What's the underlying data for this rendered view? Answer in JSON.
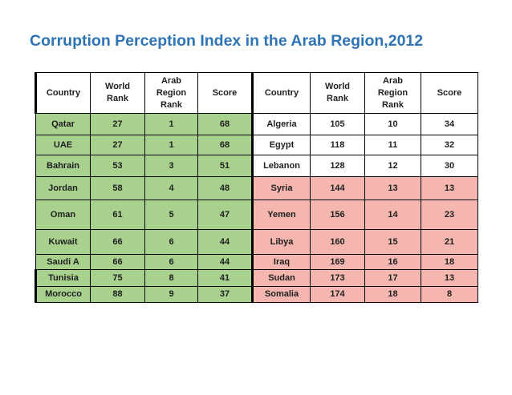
{
  "title": "Corruption Perception Index in the Arab Region,2012",
  "headers": [
    "Country",
    "World Rank",
    "Arab Region Rank",
    "Score",
    "Country",
    "World Rank",
    "Arab Region Rank",
    "Score"
  ],
  "header_lines": [
    [
      "Country"
    ],
    [
      "World",
      "Rank"
    ],
    [
      "Arab",
      "Region",
      "Rank"
    ],
    [
      "Score"
    ],
    [
      "Country"
    ],
    [
      "World",
      "Rank"
    ],
    [
      "Arab",
      "Region",
      "Rank"
    ],
    [
      "Score"
    ]
  ],
  "rows": [
    {
      "left": [
        "Qatar",
        "27",
        "1",
        "68"
      ],
      "right": [
        "Algeria",
        "105",
        "10",
        "34"
      ]
    },
    {
      "left": [
        "UAE",
        "27",
        "1",
        "68"
      ],
      "right": [
        "Egypt",
        "118",
        "11",
        "32"
      ]
    },
    {
      "left": [
        "Bahrain",
        "53",
        "3",
        "51"
      ],
      "right": [
        "Lebanon",
        "128",
        "12",
        "30"
      ]
    },
    {
      "left": [
        "Jordan",
        "58",
        "4",
        "48"
      ],
      "right": [
        "Syria",
        "144",
        "13",
        "13"
      ]
    },
    {
      "left": [
        "Oman",
        "61",
        "5",
        "47"
      ],
      "right": [
        "Yemen",
        "156",
        "14",
        "23"
      ]
    },
    {
      "left": [
        "Kuwait",
        "66",
        "6",
        "44"
      ],
      "right": [
        "Libya",
        "160",
        "15",
        "21"
      ]
    },
    {
      "left": [
        "Saudi A",
        "66",
        "6",
        "44"
      ],
      "right": [
        "Iraq",
        "169",
        "16",
        "18"
      ]
    },
    {
      "left": [
        "Tunisia",
        "75",
        "8",
        "41"
      ],
      "right": [
        "Sudan",
        "173",
        "17",
        "13"
      ]
    },
    {
      "left": [
        "Morocco",
        "88",
        "9",
        "37"
      ],
      "right": [
        "Somalia",
        "174",
        "18",
        "8"
      ]
    }
  ],
  "colors": {
    "title": "#2e74b5",
    "left_fill": "#a9d18e",
    "right_fill": "#f4b6ae",
    "highlight_text": "#833c0b"
  },
  "highlight_row": "Jordan"
}
